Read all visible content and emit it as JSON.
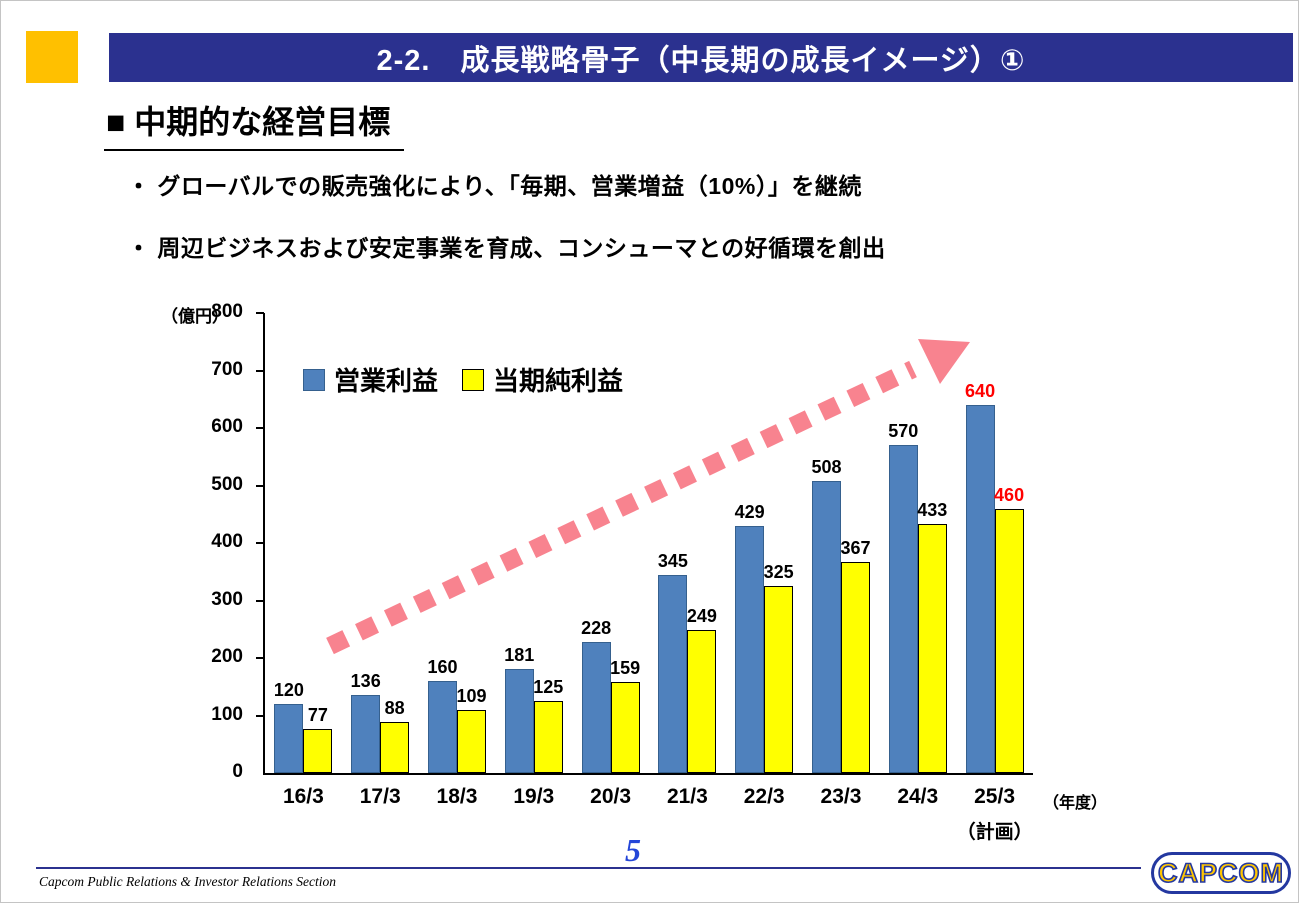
{
  "title_bar": {
    "text": "2-2.　成長戦略骨子（中長期の成長イメージ）①"
  },
  "heading": {
    "text": "■ 中期的な経営目標"
  },
  "bullets": [
    {
      "text": "・ グローバルでの販売強化により、「毎期、営業増益（10%）」を継続"
    },
    {
      "text": "・ 周辺ビジネスおよび安定事業を育成、コンシューマとの好循環を創出"
    }
  ],
  "chart_data": {
    "type": "bar",
    "unit_label": "（億円）",
    "x_axis_suffix": "（年度）",
    "categories": [
      "16/3",
      "17/3",
      "18/3",
      "19/3",
      "20/3",
      "21/3",
      "22/3",
      "23/3",
      "24/3",
      "25/3"
    ],
    "last_category_note": "（計画）",
    "series": [
      {
        "name": "営業利益",
        "color": "#4F81BD",
        "border": "#35608E",
        "values": [
          120,
          136,
          160,
          181,
          228,
          345,
          429,
          508,
          570,
          640
        ]
      },
      {
        "name": "当期純利益",
        "color": "#FFFF00",
        "border": "#000000",
        "values": [
          77,
          88,
          109,
          125,
          159,
          249,
          325,
          367,
          433,
          460
        ]
      }
    ],
    "ylim": [
      0,
      800
    ],
    "yticks": [
      0,
      100,
      200,
      300,
      400,
      500,
      600,
      700,
      800
    ],
    "grid": false,
    "legend_position": "top-left-inside",
    "label_color": "#000000",
    "highlight_last_label_color": "#FF0000",
    "trend_arrow_color": "#F8838F"
  },
  "footer": {
    "credit": "Capcom Public Relations & Investor Relations Section",
    "page_number": "5",
    "logo_text": "CAPCOM"
  },
  "colors": {
    "title_bar_bg": "#2B318F",
    "accent_yellow": "#FFC000",
    "footer_blue": "#2B318F",
    "page_num_blue": "#2446D8",
    "logo_blue": "#2438A0",
    "logo_yellow": "#FFC600"
  }
}
